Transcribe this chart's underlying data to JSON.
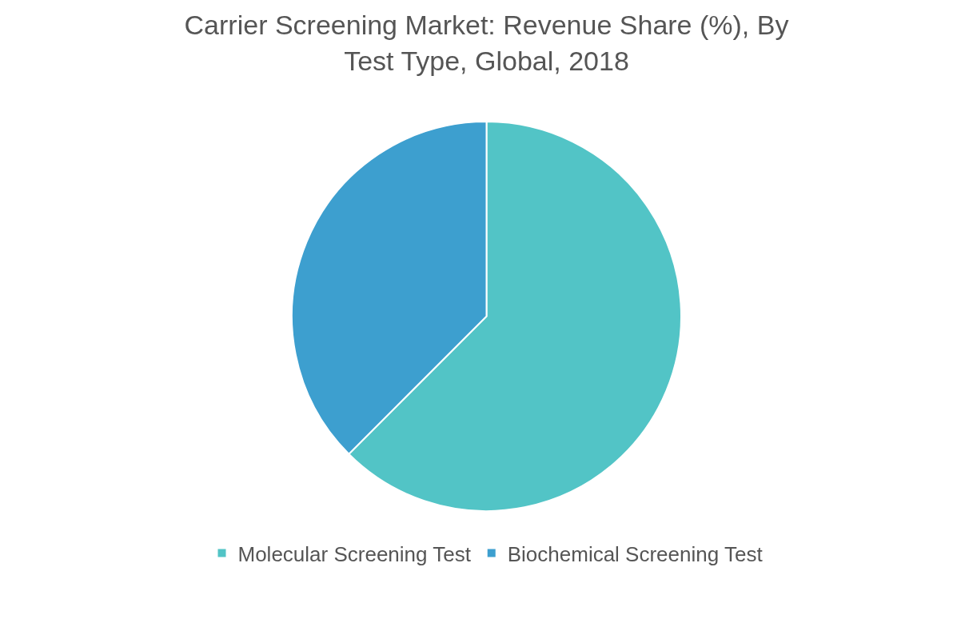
{
  "chart_data": {
    "type": "pie",
    "title": "Carrier Screening Market: Revenue Share (%), By\nTest Type, Global, 2018",
    "categories": [
      "Molecular Screening Test",
      "Biochemical Screening Test"
    ],
    "values": [
      62.5,
      37.5
    ],
    "colors": [
      "#52c4c6",
      "#3d9fcf"
    ],
    "legend": "bottom"
  }
}
